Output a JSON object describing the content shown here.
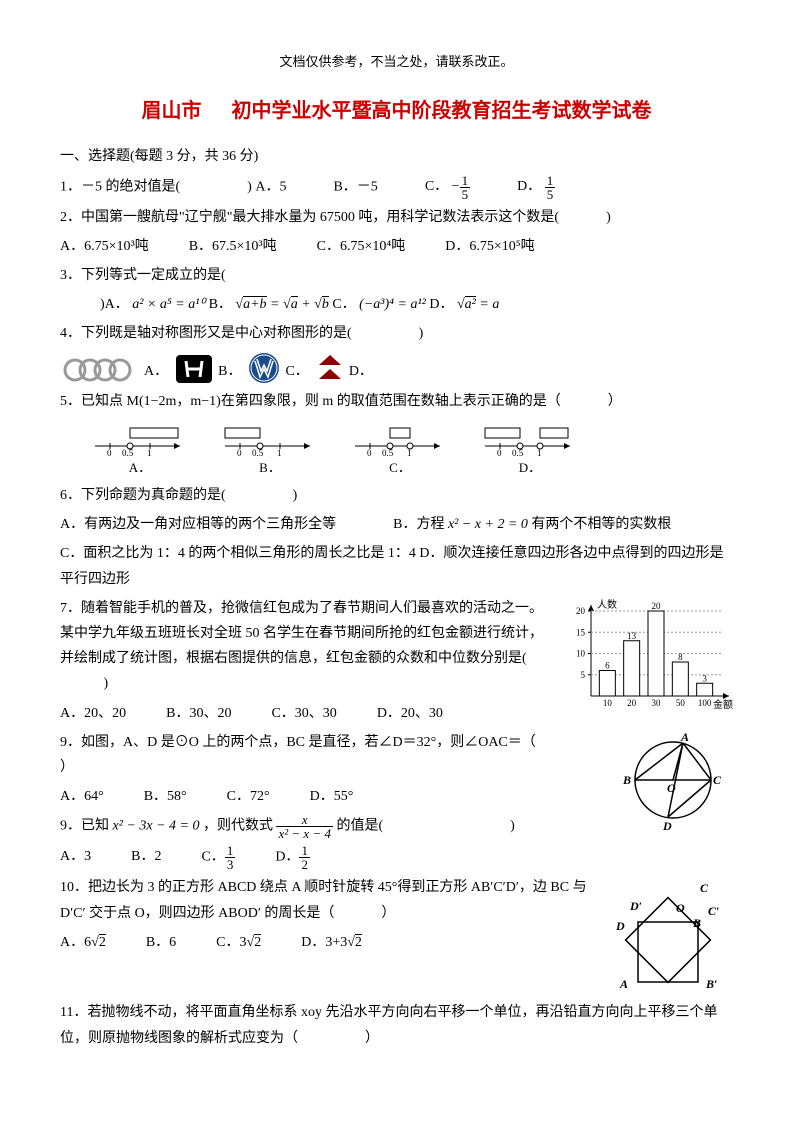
{
  "header_note": "文档仅供参考，不当之处，请联系改正。",
  "title_city": "眉山市",
  "title_rest": "初中学业水平暨高中阶段教育招生考试数学试卷",
  "section1": "一、选择题(每题 3 分，共 36 分)",
  "q1": {
    "stem": "1．－5 的绝对值是(",
    "close": ")",
    "a": "A．5",
    "b": "B．－5",
    "c": "C．",
    "d": "D．"
  },
  "q2": {
    "stem": "2．中国第一艘航母\"辽宁舰\"最大排水量为 67500 吨，用科学记数法表示这个数是(",
    "close": ")",
    "a": "A．6.75×10³吨",
    "b": "B．67.5×10³吨",
    "c": "C．6.75×10⁴吨",
    "d": "D．6.75×10⁵吨"
  },
  "q3": {
    "stem": "3．下列等式一定成立的是(",
    "close_text": ")A．",
    "eqA": "a² × a⁵ = a¹⁰",
    "b": " B．",
    "c": " C．",
    "eqC": "(−a³)⁴ = a¹²",
    "d": " D．",
    "eqD_left": "a²",
    "eqD_right": " = a"
  },
  "q4": {
    "stem": "4．下列既是轴对称图形又是中心对称图形的是(",
    "close": ")",
    "a": "A．",
    "b": "B．",
    "c": "C．",
    "d": "D．"
  },
  "q5": {
    "stem": "5．已知点 M(1−2m，m−1)在第四象限，则 m 的取值范围在数轴上表示正确的是（",
    "close": "）",
    "a": "A．",
    "b": "B．",
    "c": "C．",
    "d": "D．",
    "tick1": "0",
    "tick2": "0.5",
    "tick3": "1"
  },
  "q6": {
    "stem": "6．下列命题为真命题的是(",
    "close": ")",
    "a": "A．有两边及一角对应相等的两个三角形全等",
    "b_prefix": "B．方程 ",
    "b_eq": "x² − x + 2 = 0",
    "b_suffix": " 有两个不相等的实数根",
    "c": "C．面积之比为 1：4 的两个相似三角形的周长之比是 1：4  D．顺次连接任意四边形各边中点得到的四边形是平行四边形"
  },
  "q7": {
    "stem": "7．随着智能手机的普及，抢微信红包成为了春节期间人们最喜欢的活动之一。某中学九年级五班班长对全班 50 名学生在春节期间所抢的红包金额进行统计，并绘制成了统计图，根据右图提供的信息，红包金额的众数和中位数分别是(",
    "close": ")",
    "a": "A．20、20",
    "b": "B．30、20",
    "c": "C．30、30",
    "d": "D．20、30"
  },
  "chart": {
    "y_label": "人数",
    "x_label": "金额",
    "categories": [
      "10",
      "20",
      "30",
      "50",
      "100"
    ],
    "values": [
      6,
      13,
      20,
      8,
      3
    ],
    "ylim": 20,
    "yticks": [
      5,
      10,
      15,
      20
    ],
    "value_labels": [
      "6",
      "13",
      "20",
      "8",
      "3"
    ],
    "bar_color": "#ffffff",
    "border_color": "#000000"
  },
  "q8": {
    "stem": "9．如图，A、D 是⊙O 上的两个点，BC 是直径，若∠D＝32°，则∠OAC＝（",
    "close": "）",
    "a": "A．64°",
    "b": "B．58°",
    "c": "C．72°",
    "d": "D．55°",
    "labels": {
      "A": "A",
      "B": "B",
      "C": "C",
      "D": "D",
      "O": "O"
    }
  },
  "q9": {
    "stem_prefix": "9．已知 ",
    "eq1": "x² − 3x − 4 = 0",
    "stem_mid": "，则代数式 ",
    "stem_suffix": " 的值是(",
    "close": ")",
    "frac_num": "x",
    "frac_den": "x² − x − 4",
    "a": "A．3",
    "b": "B．2",
    "c": "C．",
    "d": "D．"
  },
  "q10": {
    "stem": "10．把边长为 3 的正方形 ABCD 绕点 A 顺时针旋转 45°得到正方形 AB′C′D′，边 BC 与 D′C′ 交于点 O，则四边形 ABOD′ 的周长是（",
    "close": "）",
    "a_prefix": "A．",
    "a_val": "6√2",
    "b": "B．6",
    "c_prefix": "C．",
    "c_val": "3√2",
    "d_prefix": "D．",
    "d_val": "3+3√2",
    "labels": {
      "A": "A",
      "B": "B",
      "C": "C",
      "D": "D",
      "Bp": "B′",
      "Cp": "C′",
      "Dp": "D′",
      "O": "O"
    }
  },
  "q11": {
    "stem": "11．若抛物线不动，将平面直角坐标系 xoy 先沿水平方向向右平移一个单位，再沿铅直方向向上平移三个单位，则原抛物线图象的解析式应变为（",
    "close": "）"
  }
}
